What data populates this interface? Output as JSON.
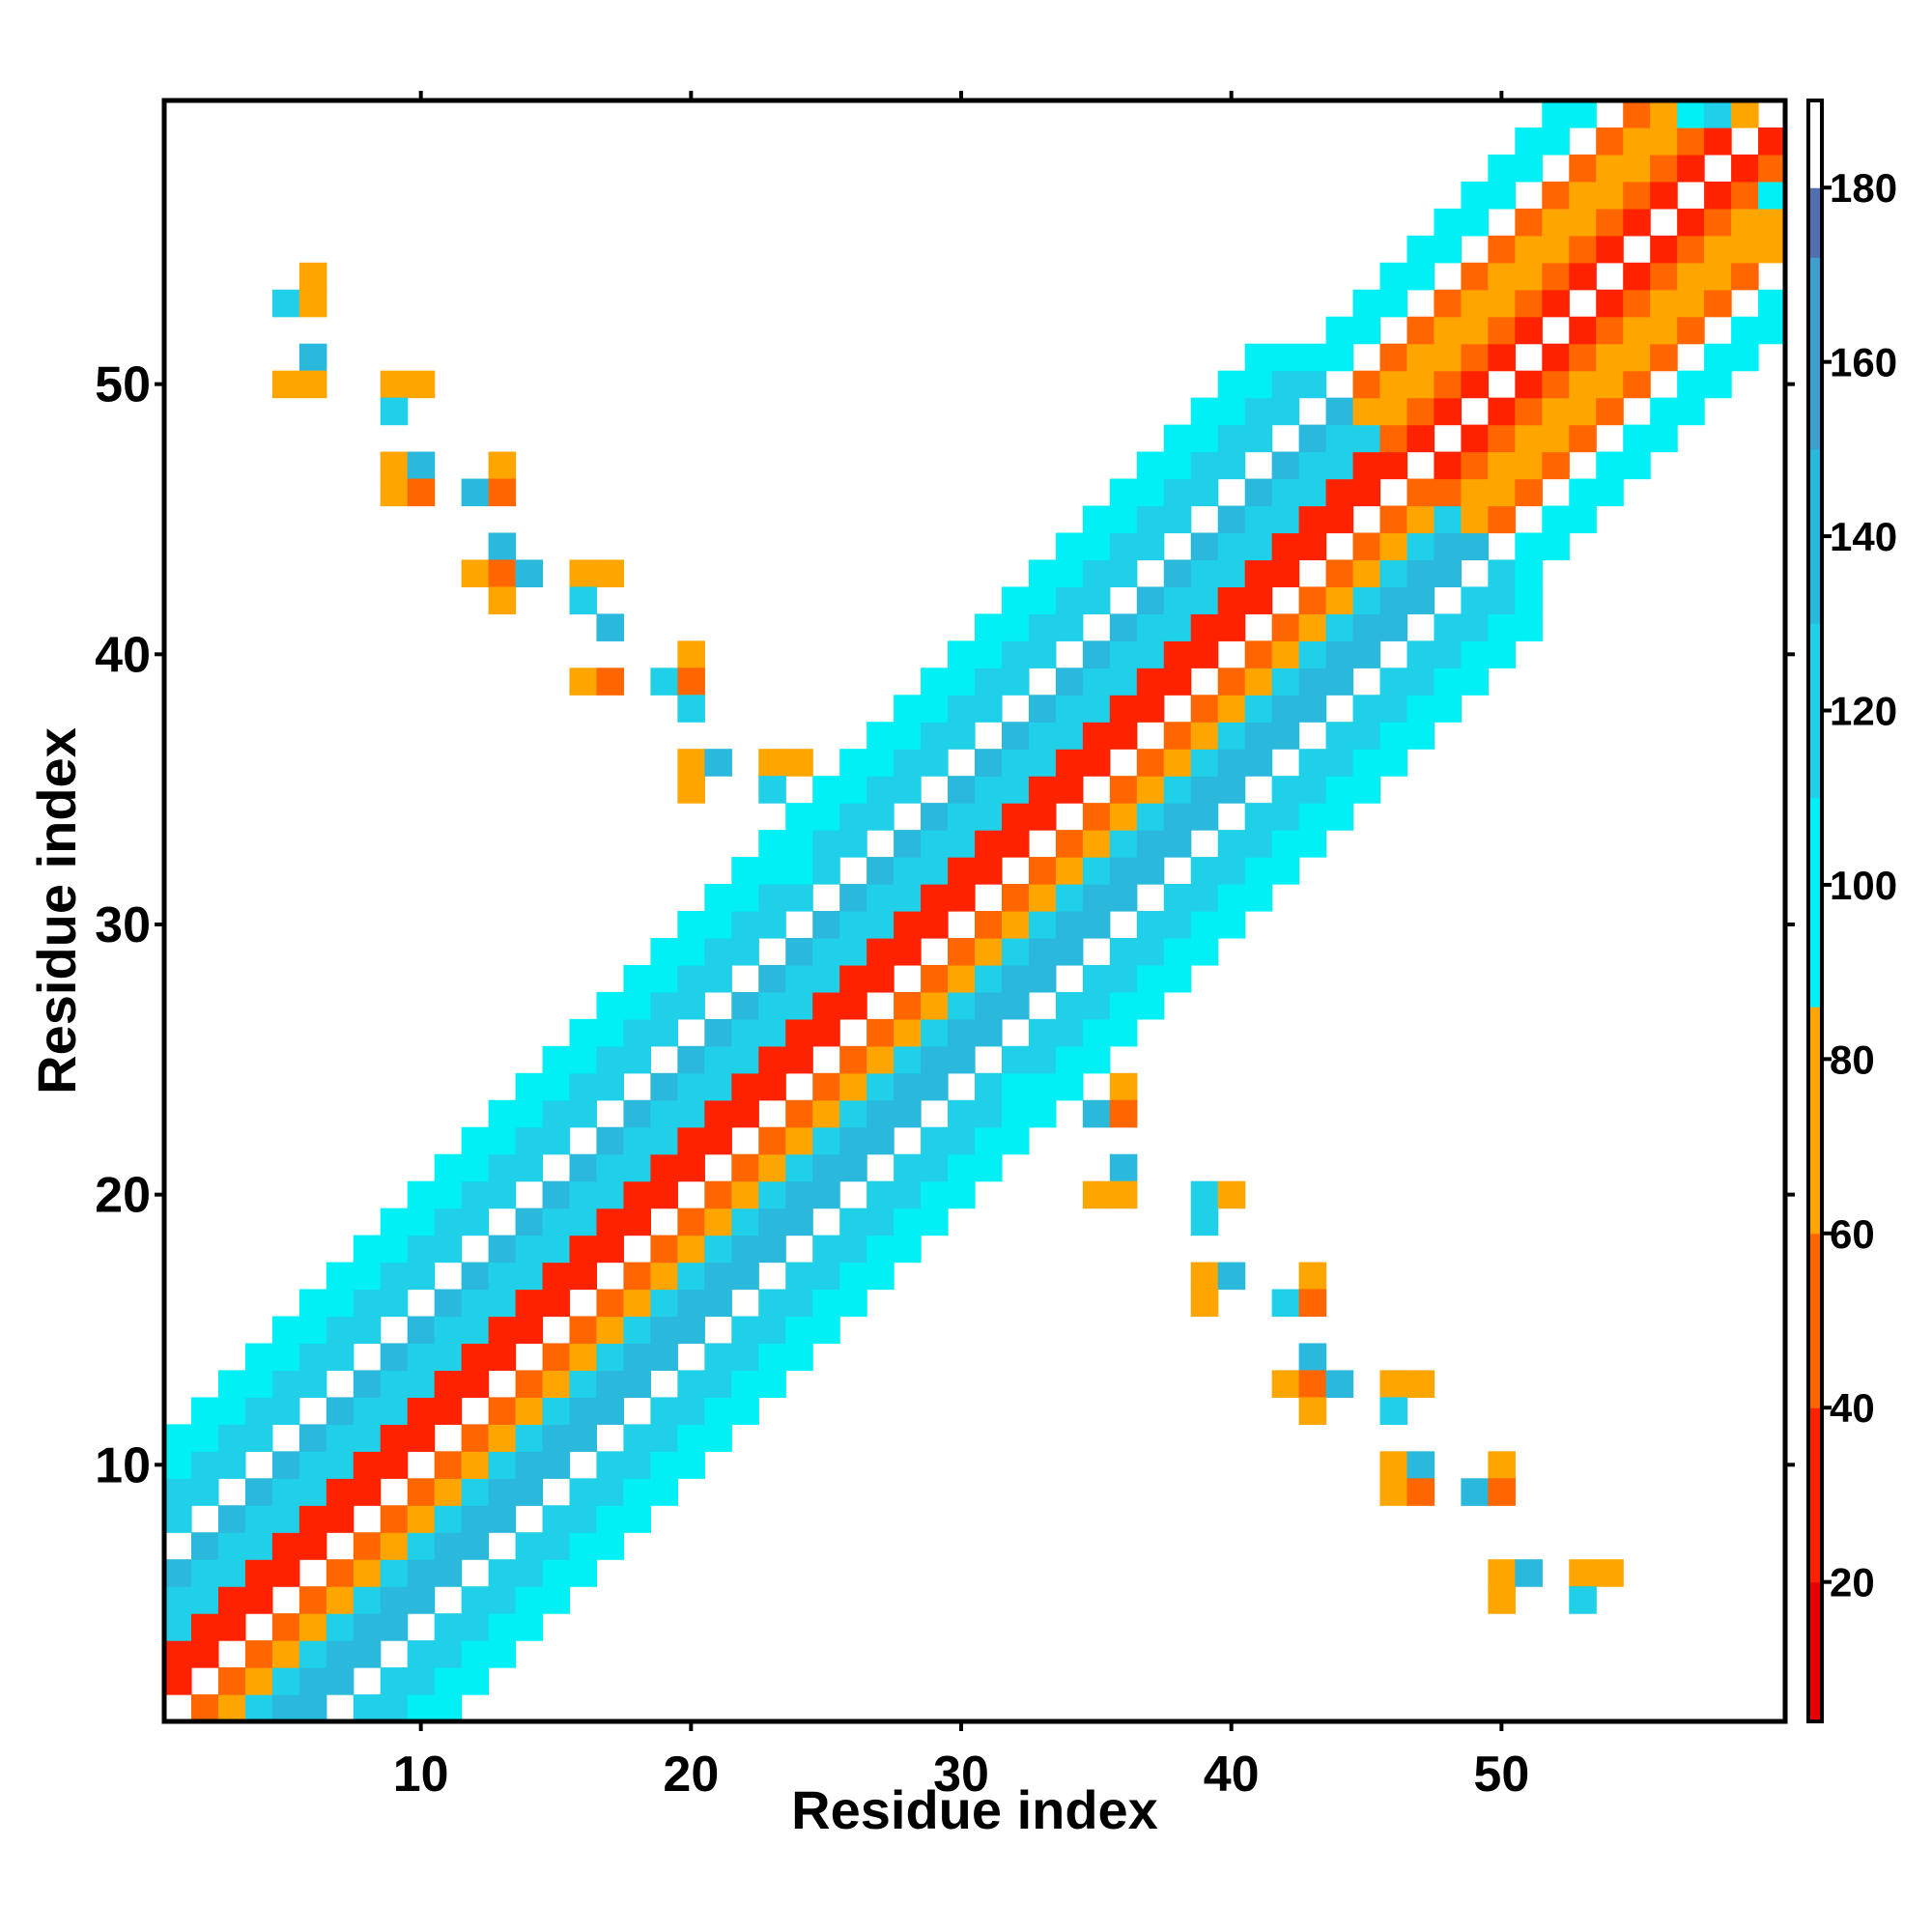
{
  "chart_data": {
    "type": "heatmap",
    "title": "",
    "xlabel": "Residue index",
    "ylabel": "Residue index",
    "xlim": [
      0.5,
      60.5
    ],
    "ylim": [
      0.5,
      60.5
    ],
    "x_ticks": [
      10,
      20,
      30,
      40,
      50
    ],
    "y_ticks": [
      10,
      20,
      30,
      40,
      50
    ],
    "grid": false,
    "colorbar": {
      "placement": "right",
      "range": [
        4,
        190
      ],
      "ticks": [
        20,
        40,
        60,
        80,
        100,
        120,
        140,
        160,
        180
      ]
    },
    "colorscale": [
      {
        "max": 20,
        "color": "#e60000"
      },
      {
        "max": 40,
        "color": "#ff2200"
      },
      {
        "max": 60,
        "color": "#ff6600"
      },
      {
        "max": 86,
        "color": "#ffa500"
      },
      {
        "max": 110,
        "color": "#00f0f5"
      },
      {
        "max": 130,
        "color": "#1fd0e8"
      },
      {
        "max": 150,
        "color": "#2ab8dc"
      },
      {
        "max": 172,
        "color": "#3fa0d0"
      },
      {
        "max": 180,
        "color": "#5070b0"
      },
      {
        "max": 999,
        "color": "#ffffff"
      }
    ],
    "off_diagonal_cells": [
      [
        5,
        53,
        115
      ],
      [
        6,
        53,
        70
      ],
      [
        6,
        54,
        80
      ],
      [
        6,
        51,
        145
      ],
      [
        5,
        50,
        80
      ],
      [
        6,
        50,
        80
      ],
      [
        9,
        50,
        70
      ],
      [
        10,
        50,
        80
      ],
      [
        9,
        49,
        125
      ],
      [
        9,
        47,
        70
      ],
      [
        10,
        47,
        145
      ],
      [
        9,
        46,
        80
      ],
      [
        10,
        46,
        60
      ],
      [
        12,
        46,
        145
      ],
      [
        13,
        47,
        80
      ],
      [
        13,
        46,
        60
      ],
      [
        13,
        44,
        145
      ],
      [
        12,
        43,
        80
      ],
      [
        13,
        43,
        60
      ],
      [
        14,
        43,
        145
      ],
      [
        13,
        42,
        80
      ],
      [
        16,
        43,
        70
      ],
      [
        17,
        43,
        80
      ],
      [
        16,
        42,
        125
      ],
      [
        17,
        41,
        145
      ],
      [
        16,
        39,
        80
      ],
      [
        17,
        39,
        60
      ],
      [
        19,
        39,
        125
      ],
      [
        20,
        40,
        80
      ],
      [
        20,
        39,
        60
      ],
      [
        20,
        38,
        115
      ],
      [
        20,
        36,
        70
      ],
      [
        21,
        36,
        145
      ],
      [
        20,
        35,
        80
      ],
      [
        23,
        36,
        70
      ],
      [
        24,
        36,
        80
      ],
      [
        23,
        35,
        125
      ],
      [
        23,
        32,
        100
      ],
      [
        24,
        32,
        100
      ],
      [
        32,
        24,
        100
      ],
      [
        32,
        23,
        100
      ],
      [
        35,
        23,
        145
      ],
      [
        36,
        24,
        80
      ],
      [
        36,
        23,
        60
      ],
      [
        36,
        21,
        145
      ],
      [
        35,
        20,
        80
      ],
      [
        36,
        20,
        80
      ],
      [
        39,
        20,
        125
      ],
      [
        40,
        20,
        80
      ],
      [
        39,
        19,
        125
      ],
      [
        39,
        17,
        80
      ],
      [
        40,
        17,
        145
      ],
      [
        39,
        16,
        80
      ],
      [
        42,
        16,
        125
      ],
      [
        43,
        17,
        80
      ],
      [
        43,
        16,
        60
      ],
      [
        43,
        14,
        145
      ],
      [
        42,
        13,
        80
      ],
      [
        43,
        13,
        60
      ],
      [
        44,
        13,
        145
      ],
      [
        43,
        12,
        80
      ],
      [
        46,
        13,
        70
      ],
      [
        47,
        13,
        80
      ],
      [
        46,
        12,
        125
      ],
      [
        46,
        10,
        70
      ],
      [
        47,
        10,
        145
      ],
      [
        46,
        9,
        80
      ],
      [
        47,
        9,
        60
      ],
      [
        49,
        9,
        145
      ],
      [
        50,
        10,
        80
      ],
      [
        50,
        9,
        60
      ],
      [
        50,
        6,
        70
      ],
      [
        51,
        6,
        145
      ],
      [
        50,
        5,
        80
      ],
      [
        53,
        6,
        70
      ],
      [
        54,
        6,
        80
      ],
      [
        53,
        5,
        125
      ],
      [
        55,
        60,
        60
      ],
      [
        57,
        60,
        100
      ],
      [
        58,
        60,
        125
      ],
      [
        59,
        60,
        70
      ],
      [
        60,
        58,
        60
      ],
      [
        60,
        57,
        100
      ],
      [
        60,
        55,
        70
      ]
    ]
  }
}
